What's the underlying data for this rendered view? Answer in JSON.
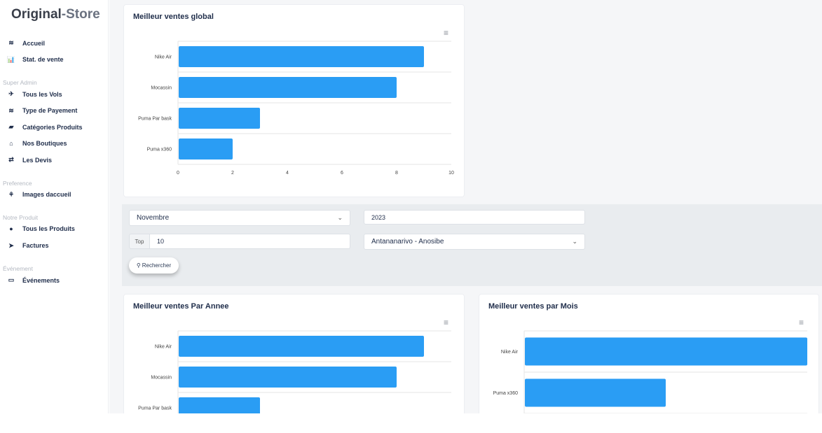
{
  "brand": {
    "part1": "Original",
    "part2": "-Store"
  },
  "sidebar": {
    "items": [
      {
        "icon": "layers-icon",
        "glyph": "≋",
        "label": "Accueil"
      },
      {
        "icon": "bar-chart-icon",
        "glyph": "📊",
        "label": "Stat. de vente"
      },
      {
        "section": "Super Admin"
      },
      {
        "icon": "plane-icon",
        "glyph": "✈",
        "label": "Tous les Vols"
      },
      {
        "icon": "layers-icon",
        "glyph": "≋",
        "label": "Type de Payement"
      },
      {
        "icon": "book-icon",
        "glyph": "▰",
        "label": "Catégories Produits"
      },
      {
        "icon": "home-icon",
        "glyph": "⌂",
        "label": "Nos Boutiques"
      },
      {
        "icon": "retweet-icon",
        "glyph": "⇄",
        "label": "Les Devis"
      },
      {
        "section": "Preference"
      },
      {
        "icon": "image-icon",
        "glyph": "⚘",
        "label": "Images daccueil"
      },
      {
        "section": "Notre Produit"
      },
      {
        "icon": "product-icon",
        "glyph": "●",
        "label": "Tous les Produits"
      },
      {
        "icon": "send-icon",
        "glyph": "➤",
        "label": "Factures"
      },
      {
        "section": "Événement"
      },
      {
        "icon": "calendar-icon",
        "glyph": "▭",
        "label": "Événements"
      }
    ]
  },
  "filters": {
    "month": "Novembre",
    "year": "2023",
    "top_label": "Top",
    "top_value": "10",
    "shop": "Antananarivo - Anosibe",
    "search_label": "Rechercher"
  },
  "colors": {
    "bar": "#2a9df4"
  },
  "chart_data": [
    {
      "type": "bar",
      "orientation": "horizontal",
      "title": "Meilleur ventes global",
      "categories": [
        "Nike Air",
        "Mocassin",
        "Puma Par bask",
        "Puma x360"
      ],
      "values": [
        9,
        8,
        3,
        2
      ],
      "xlim": [
        0,
        10
      ],
      "xticks": [
        0,
        2,
        4,
        6,
        8,
        10
      ],
      "grid": true
    },
    {
      "type": "bar",
      "orientation": "horizontal",
      "title": "Meilleur ventes Par Annee",
      "categories": [
        "Nike Air",
        "Mocassin",
        "Puma Par bask"
      ],
      "values": [
        9,
        8,
        3
      ],
      "xlim": [
        0,
        10
      ],
      "grid": true
    },
    {
      "type": "bar",
      "orientation": "horizontal",
      "title": "Meilleur ventes par Mois",
      "categories": [
        "Nike Air",
        "Puma x360"
      ],
      "values": [
        2,
        1
      ],
      "xlim": [
        0,
        2
      ],
      "grid": true
    }
  ]
}
